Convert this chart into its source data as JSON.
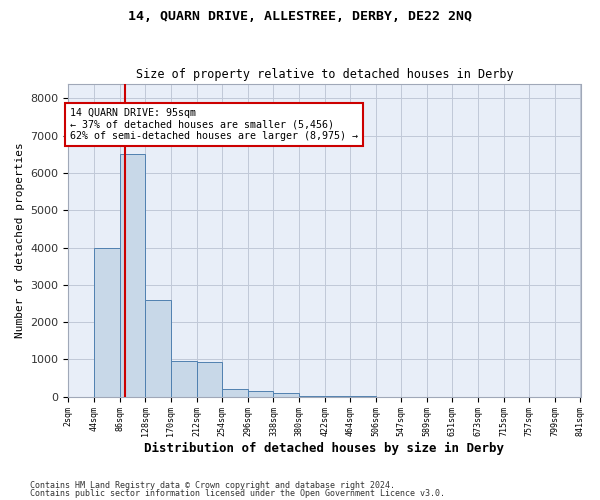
{
  "title_line1": "14, QUARN DRIVE, ALLESTREE, DERBY, DE22 2NQ",
  "title_line2": "Size of property relative to detached houses in Derby",
  "xlabel": "Distribution of detached houses by size in Derby",
  "ylabel": "Number of detached properties",
  "bar_edges": [
    2,
    44,
    86,
    128,
    170,
    212,
    254,
    296,
    338,
    380,
    422,
    464,
    506,
    547,
    589,
    631,
    673,
    715,
    757,
    799,
    841
  ],
  "bar_heights": [
    0,
    4000,
    6500,
    2600,
    950,
    920,
    200,
    150,
    100,
    10,
    10,
    5,
    0,
    0,
    0,
    0,
    0,
    0,
    0,
    0
  ],
  "bar_color": "#c8d8e8",
  "bar_edge_color": "#5080b0",
  "property_line_x": 95,
  "property_line_color": "#cc0000",
  "annotation_text": "14 QUARN DRIVE: 95sqm\n← 37% of detached houses are smaller (5,456)\n62% of semi-detached houses are larger (8,975) →",
  "annotation_box_color": "#ffffff",
  "annotation_box_edge_color": "#cc0000",
  "ylim": [
    0,
    8400
  ],
  "yticks": [
    0,
    1000,
    2000,
    3000,
    4000,
    5000,
    6000,
    7000,
    8000
  ],
  "grid_color": "#c0c8d8",
  "bg_color": "#e8eef8",
  "fig_bg_color": "#ffffff",
  "tick_labels": [
    "2sqm",
    "44sqm",
    "86sqm",
    "128sqm",
    "170sqm",
    "212sqm",
    "254sqm",
    "296sqm",
    "338sqm",
    "380sqm",
    "422sqm",
    "464sqm",
    "506sqm",
    "547sqm",
    "589sqm",
    "631sqm",
    "673sqm",
    "715sqm",
    "757sqm",
    "799sqm",
    "841sqm"
  ],
  "footnote1": "Contains HM Land Registry data © Crown copyright and database right 2024.",
  "footnote2": "Contains public sector information licensed under the Open Government Licence v3.0."
}
